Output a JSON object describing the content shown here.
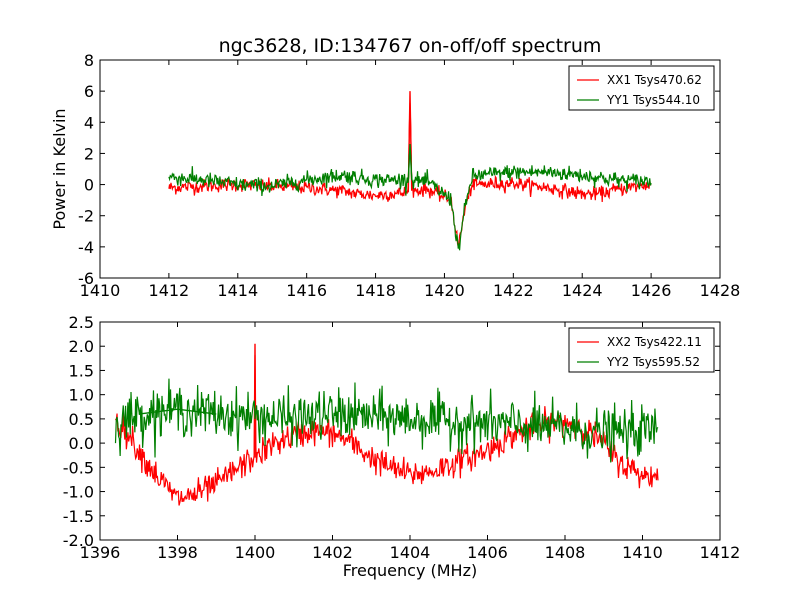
{
  "figure": {
    "title": "ngc3628, ID:134767 on-off/off spectrum"
  },
  "chart_data": [
    {
      "type": "line",
      "title": "ngc3628, ID:134767 on-off/off spectrum",
      "xlabel": "",
      "ylabel": "Power in Kelvin",
      "xlim": [
        1410,
        1428
      ],
      "ylim": [
        -6,
        8
      ],
      "xticks": [
        1410,
        1412,
        1414,
        1416,
        1418,
        1420,
        1422,
        1424,
        1426,
        1428
      ],
      "yticks": [
        -6,
        -4,
        -2,
        0,
        2,
        4,
        6,
        8
      ],
      "grid": false,
      "legend_position": "top-right",
      "series": [
        {
          "name": "XX1 Tsys470.62",
          "color": "#ff0000",
          "x_range": [
            1412,
            1426
          ],
          "noise": 0.22,
          "x": [
            1412,
            1413,
            1414,
            1415,
            1416,
            1417,
            1417.5,
            1418,
            1418.5,
            1418.95,
            1419.0,
            1419.05,
            1419.5,
            1420.2,
            1420.4,
            1420.6,
            1420.8,
            1421,
            1422,
            1423,
            1424,
            1424.5,
            1425,
            1426
          ],
          "y": [
            -0.2,
            -0.1,
            0.0,
            -0.1,
            -0.2,
            -0.4,
            -0.6,
            -0.7,
            -0.6,
            -0.5,
            6.0,
            -0.4,
            -0.3,
            -1.0,
            -4.0,
            -1.5,
            0.0,
            0.0,
            0.1,
            -0.2,
            -0.6,
            -0.6,
            -0.3,
            0.0
          ]
        },
        {
          "name": "YY1 Tsys544.10",
          "color": "#007f00",
          "x_range": [
            1412,
            1426
          ],
          "noise": 0.25,
          "x": [
            1412,
            1413,
            1414,
            1415,
            1416,
            1417,
            1418,
            1418.95,
            1419.0,
            1419.05,
            1419.5,
            1420.2,
            1420.4,
            1420.6,
            1420.8,
            1421,
            1422,
            1423,
            1424,
            1425,
            1426
          ],
          "y": [
            0.5,
            0.3,
            0.0,
            -0.1,
            0.3,
            0.6,
            0.3,
            0.3,
            2.6,
            0.3,
            0.2,
            -1.0,
            -4.2,
            -1.5,
            0.5,
            0.6,
            0.8,
            0.8,
            0.6,
            0.3,
            0.2
          ]
        }
      ]
    },
    {
      "type": "line",
      "title": "",
      "xlabel": "Frequency (MHz)",
      "ylabel": "",
      "xlim": [
        1396,
        1412
      ],
      "ylim": [
        -2.0,
        2.5
      ],
      "xticks": [
        1396,
        1398,
        1400,
        1402,
        1404,
        1406,
        1408,
        1410,
        1412
      ],
      "yticks": [
        -2.0,
        -1.5,
        -1.0,
        -0.5,
        0.0,
        0.5,
        1.0,
        1.5,
        2.0,
        2.5
      ],
      "grid": false,
      "legend_position": "top-right",
      "series": [
        {
          "name": "XX2 Tsys422.11",
          "color": "#ff0000",
          "x_range": [
            1396.4,
            1410.4
          ],
          "noise": 0.14,
          "x": [
            1396.4,
            1396.8,
            1397.2,
            1397.6,
            1398.0,
            1398.5,
            1399.0,
            1399.5,
            1399.98,
            1400.0,
            1400.02,
            1400.5,
            1401.0,
            1401.5,
            1402.0,
            1402.5,
            1403.0,
            1403.5,
            1404.0,
            1404.5,
            1405.0,
            1405.5,
            1406.0,
            1406.5,
            1407.0,
            1407.5,
            1408.0,
            1408.5,
            1409.0,
            1409.3,
            1409.6,
            1410.0,
            1410.4
          ],
          "y": [
            0.5,
            0.1,
            -0.4,
            -0.8,
            -1.15,
            -1.05,
            -0.85,
            -0.55,
            -0.3,
            2.05,
            -0.3,
            0.0,
            0.15,
            0.25,
            0.2,
            0.0,
            -0.3,
            -0.5,
            -0.65,
            -0.6,
            -0.45,
            -0.3,
            -0.15,
            0.1,
            0.3,
            0.4,
            0.45,
            0.3,
            0.0,
            -0.3,
            -0.5,
            -0.65,
            -0.7
          ]
        },
        {
          "name": "YY2 Tsys595.52",
          "color": "#007f00",
          "x_range": [
            1396.4,
            1410.4
          ],
          "noise": 0.25,
          "x": [
            1396.4,
            1397.0,
            1398.0,
            1399.0,
            1400.0,
            1401.0,
            1402.0,
            1403.0,
            1404.0,
            1405.0,
            1406.0,
            1407.0,
            1408.0,
            1409.0,
            1410.0,
            1410.4
          ],
          "y": [
            0.4,
            0.6,
            0.7,
            0.6,
            0.55,
            0.5,
            0.6,
            0.55,
            0.5,
            0.45,
            0.4,
            0.35,
            0.3,
            0.2,
            0.25,
            0.3
          ]
        }
      ]
    }
  ]
}
